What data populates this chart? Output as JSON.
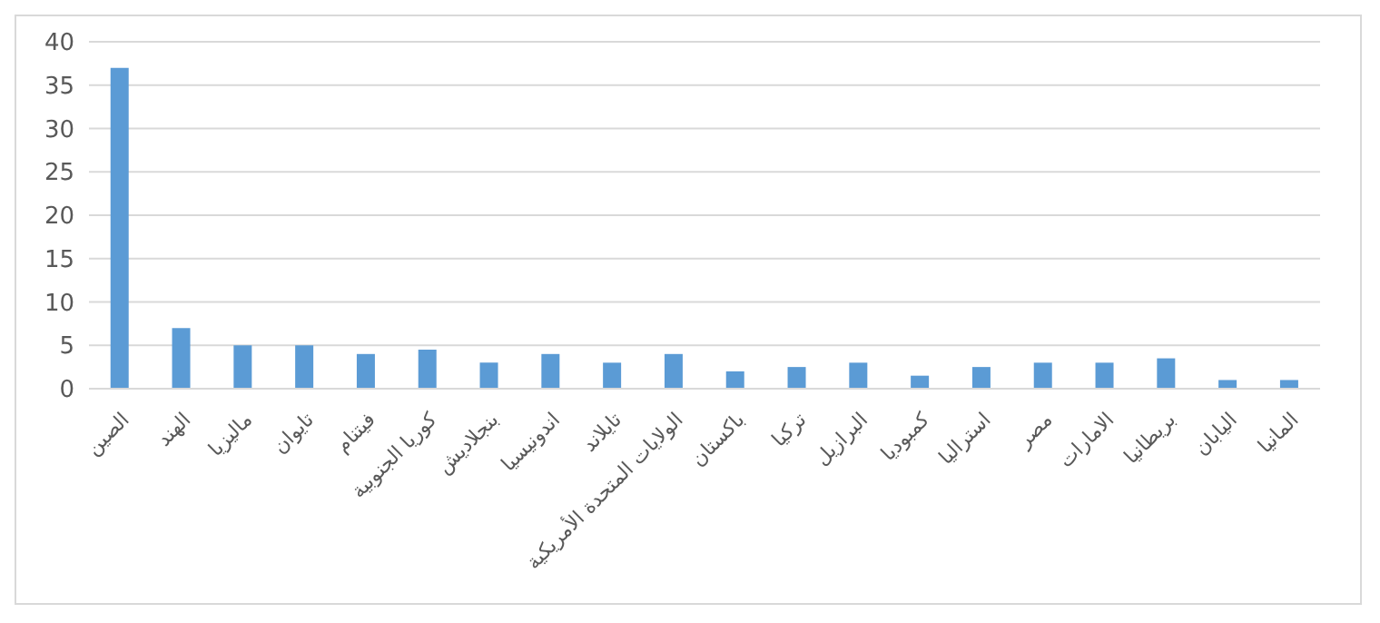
{
  "chart_data": {
    "type": "bar",
    "categories": [
      "الصين",
      "الهند",
      "ماليزيا",
      "تايوان",
      "فيتنام",
      "كوريا الجنوبية",
      "بنجلاديش",
      "اندونيسيا",
      "تايلاند",
      "الولايات المتحدة الأمريكية",
      "باكستان",
      "تركيا",
      "البرازيل",
      "كمبوديا",
      "استراليا",
      "مصر",
      "الامارات",
      "بريطانيا",
      "اليابان",
      "المانيا"
    ],
    "values": [
      37,
      7,
      5,
      5,
      4,
      4.5,
      3,
      4,
      3,
      4,
      2,
      2.5,
      3,
      1.5,
      2.5,
      3,
      3,
      3.5,
      1,
      1
    ],
    "color": "#5b9bd5",
    "ylim": [
      0,
      40
    ],
    "yticks": [
      0,
      5,
      10,
      15,
      20,
      25,
      30,
      35,
      40
    ],
    "grid": "y"
  }
}
